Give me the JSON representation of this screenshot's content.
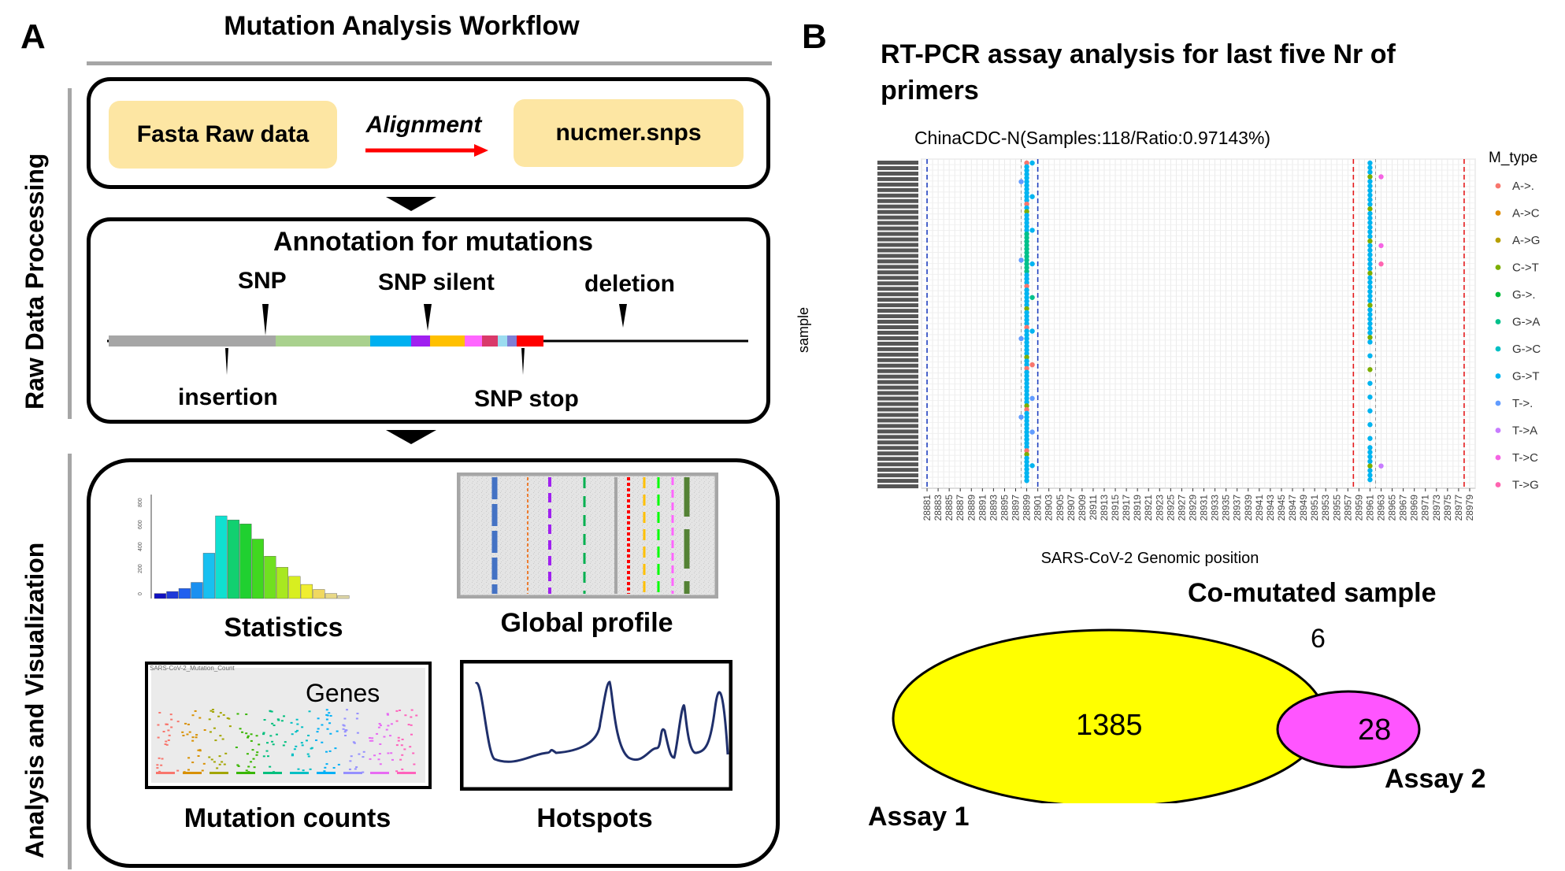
{
  "panel_a": {
    "letter": "A",
    "title": "Mutation Analysis Workflow",
    "side_label_top": "Raw Data Processing",
    "side_label_bottom": "Analysis and Visualization",
    "raw": {
      "input": "Fasta Raw data",
      "step": "Alignment",
      "output": "nucmer.snps"
    },
    "annotation": {
      "title": "Annotation for mutations",
      "labels": {
        "snp": "SNP",
        "snp_silent": "SNP silent",
        "deletion": "deletion",
        "insertion": "insertion",
        "snp_stop": "SNP stop"
      },
      "segment_colors": [
        "#a6a6a6",
        "#a9d18e",
        "#00b0f0",
        "#a020f0",
        "#ffc000",
        "#ff66ff",
        "#d9396a",
        "#9bdcf0",
        "#7f7fd5",
        "#ff0000"
      ]
    },
    "analysis": {
      "statistics": "Statistics",
      "global_profile": "Global profile",
      "mutation_counts": "Mutation counts",
      "mutation_counts_inner": "Genes",
      "mutation_counts_caption": "SARS-CoV-2_Mutation_Count",
      "hotspots": "Hotspots",
      "hist_ticks": [
        "800",
        "600",
        "400",
        "200",
        "0"
      ],
      "hist_colors": [
        "#1010c0",
        "#1e3ad8",
        "#2060ee",
        "#1a90f0",
        "#18c0f0",
        "#10e0d0",
        "#12d070",
        "#20d030",
        "#40d820",
        "#70e020",
        "#a8e820",
        "#d8ee20",
        "#f0ee30",
        "#f0d860",
        "#e8d888",
        "#e0d8a8"
      ],
      "hist_values": [
        0.05,
        0.07,
        0.1,
        0.16,
        0.45,
        0.82,
        0.78,
        0.74,
        0.59,
        0.42,
        0.31,
        0.22,
        0.14,
        0.09,
        0.05,
        0.03
      ]
    }
  },
  "panel_b": {
    "letter": "B",
    "title_line1": "RT-PCR assay analysis for last five Nr of",
    "title_line2": "primers",
    "plot_title": "ChinaCDC-N(Samples:118/Ratio:0.97143%)",
    "y_label": "sample",
    "x_label": "SARS-CoV-2 Genomic position",
    "x_ticks": [
      "28881",
      "28883",
      "28885",
      "28887",
      "28889",
      "28891",
      "28893",
      "28895",
      "28897",
      "28899",
      "28901",
      "28903",
      "28905",
      "28907",
      "28909",
      "28911",
      "28913",
      "28915",
      "28917",
      "28919",
      "28921",
      "28923",
      "28925",
      "28927",
      "28929",
      "28931",
      "28933",
      "28935",
      "28937",
      "28939",
      "28941",
      "28943",
      "28945",
      "28947",
      "28949",
      "28951",
      "28953",
      "28955",
      "28957",
      "28959",
      "28961",
      "28963",
      "28965",
      "28967",
      "28969",
      "28971",
      "28973",
      "28975",
      "28977",
      "28979"
    ],
    "legend_title": "M_type",
    "legend": [
      {
        "label": "A->.",
        "color": "#f8766d"
      },
      {
        "label": "A->C",
        "color": "#de8c00"
      },
      {
        "label": "A->G",
        "color": "#b79f00"
      },
      {
        "label": "C->T",
        "color": "#7cae00"
      },
      {
        "label": "G->.",
        "color": "#00ba38"
      },
      {
        "label": "G->A",
        "color": "#00c08b"
      },
      {
        "label": "G->C",
        "color": "#00bfc4"
      },
      {
        "label": "G->T",
        "color": "#00b4f0"
      },
      {
        "label": "T->.",
        "color": "#619cff"
      },
      {
        "label": "T->A",
        "color": "#c77cff"
      },
      {
        "label": "T->C",
        "color": "#f564e3"
      },
      {
        "label": "T->G",
        "color": "#ff64b0"
      }
    ],
    "venn": {
      "title": "Co-mutated sample",
      "overlap": "6",
      "assay1_only": "1385",
      "assay2_only": "28",
      "assay1_label": "Assay 1",
      "assay2_label": "Assay 2",
      "assay1_color": "#ffff00",
      "assay2_color": "#ff55ff"
    }
  }
}
